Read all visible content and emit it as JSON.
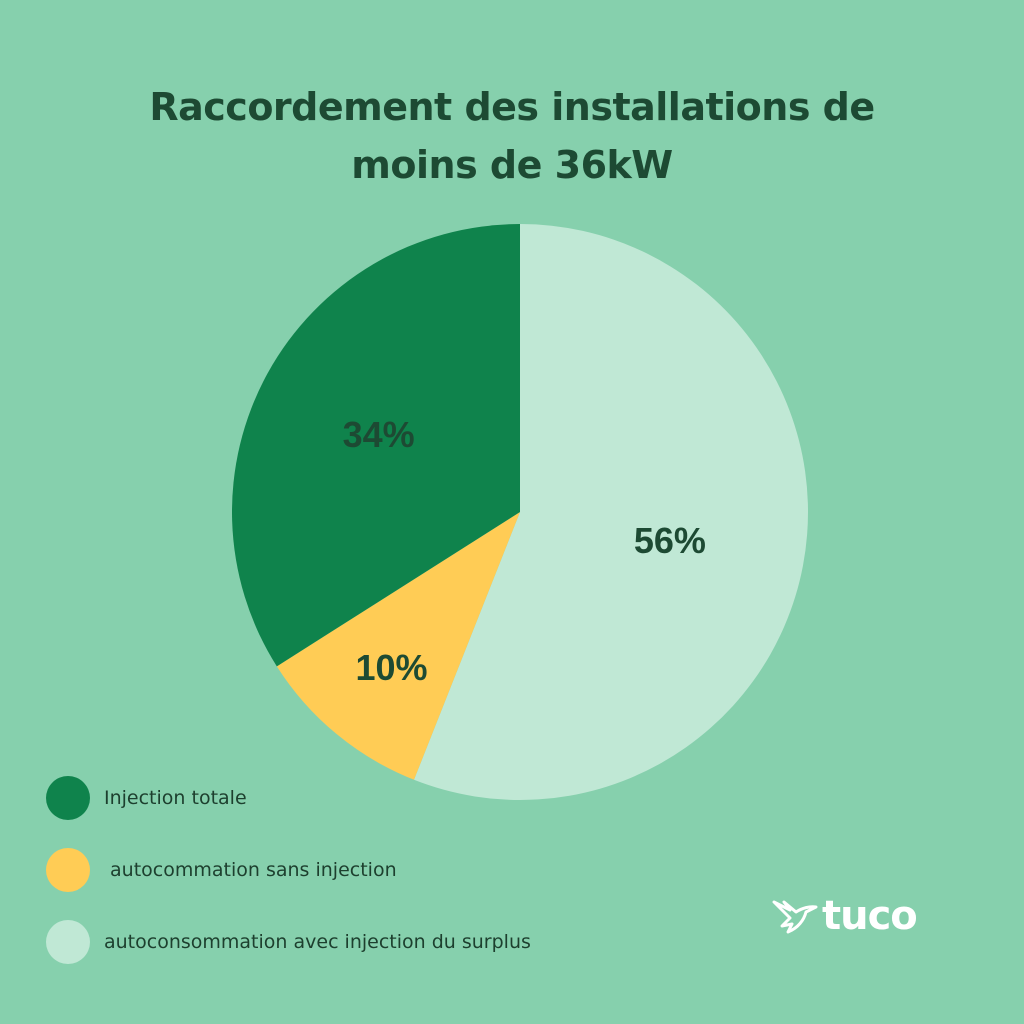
{
  "title": {
    "line1": "Raccordement des installations de",
    "line2": "moins de 36kW"
  },
  "chart_data": {
    "type": "pie",
    "title": "Raccordement des installations de moins de 36kW",
    "slices": [
      {
        "name": "autoconsommation avec injection du surplus",
        "value": 56,
        "label": "56%",
        "color": "#c0e8d5"
      },
      {
        "name": "autocommation sans injection",
        "value": 10,
        "label": "10%",
        "color": "#ffcc55"
      },
      {
        "name": "Injection totale",
        "value": 34,
        "label": "34%",
        "color": "#0f834c"
      }
    ],
    "start": "top, clockwise"
  },
  "legend": [
    {
      "label": "Injection totale",
      "color": "#0f834c"
    },
    {
      "label": " autocommation sans injection",
      "color": "#ffcc55"
    },
    {
      "label": "autoconsommation avec injection du surplus",
      "color": "#c0e8d5"
    }
  ],
  "logo": {
    "text": "tuco",
    "icon": "hummingbird-icon",
    "color": "#ffffff"
  }
}
